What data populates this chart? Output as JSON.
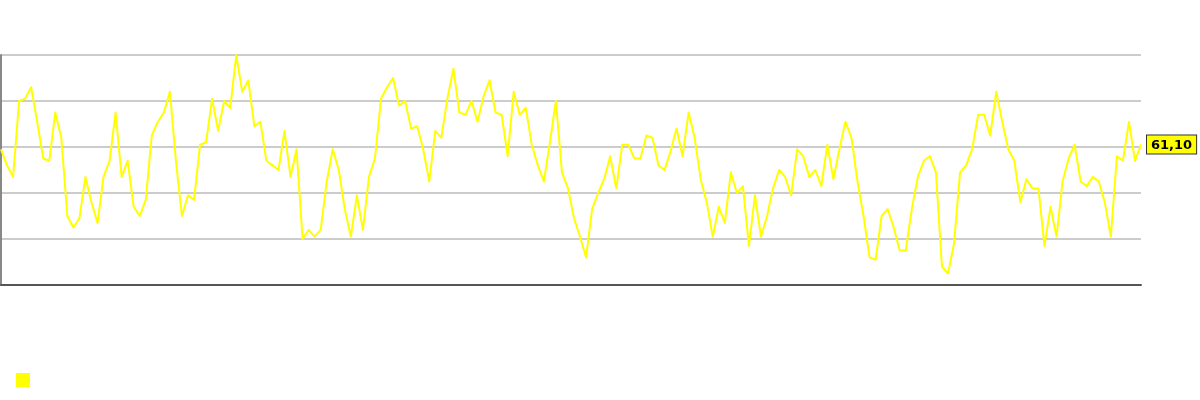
{
  "chart_data": {
    "type": "line",
    "grid": "y",
    "marker": "none",
    "ylim": [
      0,
      100
    ],
    "yticks": [
      {
        "value": 0,
        "label": null
      },
      {
        "value": 20,
        "label": null
      },
      {
        "value": 40,
        "label": null
      },
      {
        "value": 60,
        "label": null
      },
      {
        "value": 80,
        "label": null
      },
      {
        "value": 100,
        "label": null
      }
    ],
    "tick_labels": false,
    "categories": [
      null,
      null,
      null,
      null,
      null,
      null,
      null,
      null,
      null,
      null,
      null,
      null,
      null,
      null,
      null,
      null,
      null,
      null,
      null,
      null,
      null,
      null,
      null,
      null,
      null,
      null,
      null,
      null,
      null,
      null,
      null,
      null,
      null,
      null,
      null,
      null,
      null,
      null,
      null,
      null,
      null,
      null,
      null,
      null,
      null,
      null,
      null,
      null,
      null,
      null,
      null,
      null,
      null,
      null,
      null,
      null,
      null,
      null,
      null,
      null,
      null,
      null,
      null,
      null,
      null,
      null,
      null,
      null,
      null,
      null,
      null,
      null,
      null,
      null,
      null,
      null,
      null,
      null,
      null,
      null,
      null,
      null,
      null,
      null,
      null,
      null,
      null,
      null,
      null,
      null,
      null,
      null,
      null,
      null,
      null,
      null,
      null,
      null,
      null,
      null,
      null,
      null,
      null,
      null,
      null,
      null,
      null,
      null,
      null,
      null,
      null,
      null,
      null,
      null,
      null,
      null,
      null,
      null,
      null,
      null,
      null,
      null,
      null,
      null,
      null,
      null,
      null,
      null,
      null,
      null,
      null,
      null,
      null,
      null,
      null,
      null,
      null,
      null,
      null,
      null,
      null,
      null,
      null,
      null,
      null,
      null,
      null,
      null,
      null,
      null,
      null,
      null,
      null,
      null,
      null,
      null,
      null,
      null,
      null,
      null,
      null,
      null,
      null,
      null,
      null,
      null,
      null,
      null,
      null,
      null,
      null,
      null,
      null,
      null,
      null,
      null,
      null,
      null,
      null,
      null,
      null,
      null,
      null,
      null,
      null,
      null,
      null,
      null,
      null,
      null
    ],
    "series": [
      {
        "color": "#ffff00",
        "values": [
          59,
          52,
          47,
          80,
          81,
          86,
          71,
          55,
          54,
          75,
          64,
          30,
          25,
          29,
          47,
          36,
          27,
          47,
          54,
          75,
          47,
          54,
          34,
          30,
          37,
          65,
          71,
          75,
          84,
          54,
          30,
          39,
          37,
          61,
          62,
          81,
          67,
          80,
          77,
          100,
          84,
          89,
          69,
          71,
          54,
          52,
          50,
          67,
          47,
          59,
          20,
          24,
          21,
          24,
          45,
          59,
          50,
          33,
          21,
          39,
          24,
          47,
          55,
          81,
          86,
          90,
          78,
          80,
          68,
          69,
          59,
          45,
          67,
          64,
          81,
          94,
          75,
          74,
          80,
          71,
          82,
          89,
          75,
          74,
          56,
          84,
          74,
          77,
          61,
          52,
          45,
          62,
          80,
          49,
          42,
          29,
          21,
          12,
          33,
          40,
          46,
          56,
          42,
          61,
          61,
          55,
          55,
          65,
          64,
          52,
          50,
          58,
          68,
          56,
          75,
          64,
          46,
          36,
          21,
          34,
          27,
          49,
          40,
          43,
          17,
          39,
          21,
          30,
          42,
          50,
          47,
          39,
          59,
          56,
          47,
          50,
          43,
          61,
          46,
          59,
          71,
          64,
          45,
          30,
          12,
          11,
          30,
          33,
          25,
          15,
          15,
          33,
          47,
          54,
          56,
          49,
          8,
          5,
          18,
          49,
          52,
          59,
          74,
          74,
          65,
          84,
          71,
          59,
          54,
          36,
          46,
          42,
          42,
          17,
          34,
          21,
          45,
          55,
          61,
          45,
          43,
          47,
          45,
          36,
          21,
          56,
          54,
          71,
          54,
          61.1
        ],
        "value_labels": [
          null,
          null,
          null,
          null,
          null,
          null,
          null,
          null,
          null,
          null,
          null,
          null,
          null,
          null,
          null,
          null,
          null,
          null,
          null,
          null,
          null,
          null,
          null,
          null,
          null,
          null,
          null,
          null,
          null,
          null,
          null,
          null,
          null,
          null,
          null,
          null,
          null,
          null,
          null,
          null,
          null,
          null,
          null,
          null,
          null,
          null,
          null,
          null,
          null,
          null,
          null,
          null,
          null,
          null,
          null,
          null,
          null,
          null,
          null,
          null,
          null,
          null,
          null,
          null,
          null,
          null,
          null,
          null,
          null,
          null,
          null,
          null,
          null,
          null,
          null,
          null,
          null,
          null,
          null,
          null,
          null,
          null,
          null,
          null,
          null,
          null,
          null,
          null,
          null,
          null,
          null,
          null,
          null,
          null,
          null,
          null,
          null,
          null,
          null,
          null,
          null,
          null,
          null,
          null,
          null,
          null,
          null,
          null,
          null,
          null,
          null,
          null,
          null,
          null,
          null,
          null,
          null,
          null,
          null,
          null,
          null,
          null,
          null,
          null,
          null,
          null,
          null,
          null,
          null,
          null,
          null,
          null,
          null,
          null,
          null,
          null,
          null,
          null,
          null,
          null,
          null,
          null,
          null,
          null,
          null,
          null,
          null,
          null,
          null,
          null,
          null,
          null,
          null,
          null,
          null,
          null,
          null,
          null,
          null,
          null,
          null,
          null,
          null,
          null,
          null,
          null,
          null,
          null,
          null,
          null,
          null,
          null,
          null,
          null,
          null,
          null,
          null,
          null,
          null,
          null,
          null,
          null,
          null,
          null,
          null,
          null,
          null,
          null,
          null,
          "61,10"
        ]
      }
    ]
  }
}
